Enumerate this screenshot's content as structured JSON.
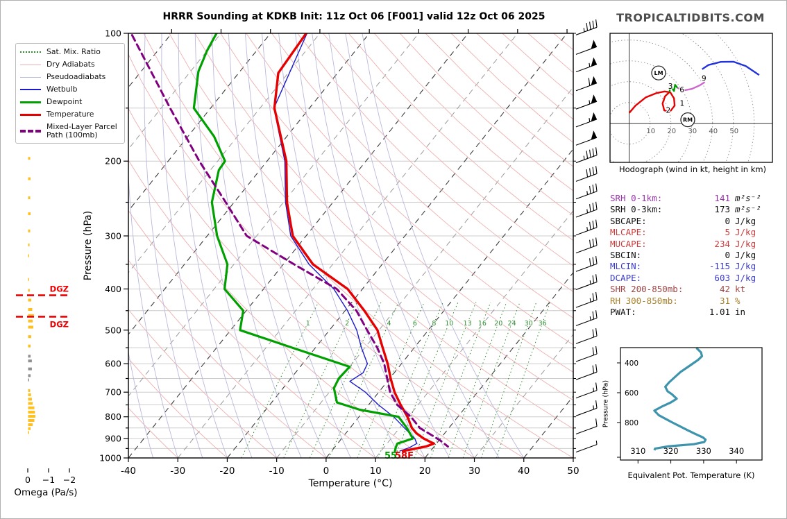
{
  "header": {
    "title": "HRRR Sounding at KDKB Init: 11z Oct 06 [F001] valid 12z Oct 06 2025",
    "site": "TROPICALTIDBITS.COM"
  },
  "skewt": {
    "xlabel": "Temperature (°C)",
    "ylabel": "Pressure (hPa)",
    "pressure_ticks": [
      100,
      200,
      300,
      400,
      500,
      600,
      700,
      800,
      900,
      1000
    ],
    "temp_ticks": [
      -40,
      -30,
      -20,
      -10,
      0,
      10,
      20,
      30,
      40,
      50
    ],
    "legend": [
      {
        "label": "Sat. Mix. Ratio"
      },
      {
        "label": "Dry Adiabats"
      },
      {
        "label": "Pseudoadiabats"
      },
      {
        "label": "Wetbulb"
      },
      {
        "label": "Dewpoint"
      },
      {
        "label": "Temperature"
      },
      {
        "label": "Mixed-Layer Parcel Path (100mb)"
      }
    ],
    "surface_dewpoint_label": "55",
    "surface_temp_label": "58F",
    "dgz_label": "DGZ"
  },
  "omega": {
    "xlabel": "Omega (Pa/s)",
    "ticks": [
      0,
      -1,
      -2
    ]
  },
  "stats": {
    "rows": [
      {
        "label": "SRH 0-1km:",
        "value": "141",
        "unit": "m²s⁻²",
        "color": "#9933aa",
        "unitColor": "#111111",
        "mathUnit": true
      },
      {
        "label": "SRH 0-3km:",
        "value": "173",
        "unit": "m²s⁻²",
        "color": "#111111",
        "unitColor": "#111111",
        "mathUnit": true
      },
      {
        "label": "SBCAPE:",
        "value": "0",
        "unit": "J/kg",
        "color": "#111111",
        "unitColor": "#111111",
        "mathUnit": false
      },
      {
        "label": "MLCAPE:",
        "value": "5",
        "unit": "J/kg",
        "color": "#cc3b3b",
        "unitColor": "#cc3b3b",
        "mathUnit": false
      },
      {
        "label": "MUCAPE:",
        "value": "234",
        "unit": "J/kg",
        "color": "#cc3b3b",
        "unitColor": "#cc3b3b",
        "mathUnit": false
      },
      {
        "label": "SBCIN:",
        "value": "0",
        "unit": "J/kg",
        "color": "#111111",
        "unitColor": "#111111",
        "mathUnit": false
      },
      {
        "label": "MLCIN:",
        "value": "-115",
        "unit": "J/kg",
        "color": "#3b3bcc",
        "unitColor": "#3b3bcc",
        "mathUnit": false
      },
      {
        "label": "DCAPE:",
        "value": "603",
        "unit": "J/kg",
        "color": "#3b3bcc",
        "unitColor": "#3b3bcc",
        "mathUnit": false
      },
      {
        "label": "SHR 200-850mb:",
        "value": "42",
        "unit": "kt",
        "color": "#a04545",
        "unitColor": "#a04545",
        "mathUnit": false
      },
      {
        "label": "RH 300-850mb:",
        "value": "31",
        "unit": "%",
        "color": "#a6802a",
        "unitColor": "#a6802a",
        "mathUnit": false
      },
      {
        "label": "PWAT:",
        "value": "1.01",
        "unit": "in",
        "color": "#111111",
        "unitColor": "#111111",
        "mathUnit": false
      }
    ]
  },
  "hodograph": {
    "caption": "Hodograph (wind in kt, height in km)",
    "ring_labels": [
      10,
      20,
      30,
      40,
      50
    ]
  },
  "theta_e": {
    "xlabel": "Equivalent Pot. Temperature (K)",
    "ylabel": "Pressure (hPa)",
    "x_ticks": [
      310,
      320,
      330,
      340
    ],
    "y_ticks": [
      400,
      600,
      800
    ]
  },
  "chart_data": [
    {
      "id": "skewt",
      "type": "line",
      "title": "HRRR Sounding at KDKB Init: 11z Oct 06 [F001] valid 12z Oct 06 2025",
      "xlabel": "Temperature (°C)",
      "ylabel": "Pressure (hPa)",
      "xlim": [
        -40,
        50
      ],
      "ylim": [
        1000,
        100
      ],
      "y_scale": "log",
      "skew": true,
      "mixing_ratio_labels": [
        1,
        2,
        3,
        4,
        6,
        8,
        10,
        13,
        16,
        20,
        24,
        30,
        36
      ],
      "dgz_pressures": [
        414,
        465
      ],
      "surface": {
        "temp_f": "58F",
        "dewpoint_f": "55"
      },
      "series": [
        {
          "name": "Temperature",
          "color": "#e60000",
          "width": 3.4,
          "dash": null,
          "points": [
            [
              99,
              -72.8
            ],
            [
              124,
              -72.0
            ],
            [
              150,
              -67.1
            ],
            [
              200,
              -56.1
            ],
            [
              250,
              -49.3
            ],
            [
              300,
              -42.7
            ],
            [
              350,
              -34.0
            ],
            [
              400,
              -23.0
            ],
            [
              450,
              -16.1
            ],
            [
              500,
              -10.3
            ],
            [
              550,
              -6.4
            ],
            [
              600,
              -2.8
            ],
            [
              650,
              0.2
            ],
            [
              700,
              3.2
            ],
            [
              750,
              6.5
            ],
            [
              800,
              9.8
            ],
            [
              850,
              12.5
            ],
            [
              875,
              14.3
            ],
            [
              900,
              16.6
            ],
            [
              915,
              18.3
            ],
            [
              925,
              19.5
            ],
            [
              940,
              18.3
            ],
            [
              955,
              15.8
            ],
            [
              963,
              14.4
            ]
          ]
        },
        {
          "name": "Dewpoint",
          "color": "#00a000",
          "width": 3.2,
          "dash": null,
          "points": [
            [
              99,
              -91.0
            ],
            [
              110,
              -90.0
            ],
            [
              123,
              -88.4
            ],
            [
              150,
              -83.4
            ],
            [
              175,
              -74.7
            ],
            [
              200,
              -68.5
            ],
            [
              210,
              -68.3
            ],
            [
              250,
              -64.5
            ],
            [
              300,
              -58.0
            ],
            [
              350,
              -51.3
            ],
            [
              400,
              -47.9
            ],
            [
              450,
              -40.6
            ],
            [
              500,
              -38.1
            ],
            [
              550,
              -24.7
            ],
            [
              610,
              -10.0
            ],
            [
              650,
              -10.3
            ],
            [
              685,
              -9.7
            ],
            [
              740,
              -6.8
            ],
            [
              770,
              -1.0
            ],
            [
              800,
              8.0
            ],
            [
              850,
              11.5
            ],
            [
              900,
              14.4
            ],
            [
              925,
              12.1
            ],
            [
              945,
              12.4
            ],
            [
              963,
              12.8
            ]
          ]
        },
        {
          "name": "Wetbulb",
          "color": "#1a1acc",
          "width": 1.4,
          "dash": null,
          "points": [
            [
              100,
              -72.6
            ],
            [
              150,
              -67.2
            ],
            [
              200,
              -56.4
            ],
            [
              250,
              -49.6
            ],
            [
              300,
              -43.1
            ],
            [
              350,
              -34.8
            ],
            [
              400,
              -25.8
            ],
            [
              450,
              -19.5
            ],
            [
              500,
              -14.5
            ],
            [
              550,
              -10.7
            ],
            [
              600,
              -6.9
            ],
            [
              630,
              -6.3
            ],
            [
              660,
              -7.6
            ],
            [
              700,
              -2.7
            ],
            [
              750,
              2.0
            ],
            [
              800,
              7.0
            ],
            [
              850,
              11.0
            ],
            [
              900,
              14.8
            ],
            [
              925,
              16.0
            ],
            [
              945,
              15.2
            ],
            [
              963,
              13.8
            ]
          ]
        },
        {
          "name": "Mixed-Layer Parcel Path (100mb)",
          "color": "#800080",
          "width": 3.0,
          "dash": "9,6",
          "points": [
            [
              101,
              -107.7
            ],
            [
              150,
              -88.2
            ],
            [
              200,
              -73.7
            ],
            [
              250,
              -61.7
            ],
            [
              300,
              -52.0
            ],
            [
              350,
              -37.8
            ],
            [
              400,
              -25.2
            ],
            [
              450,
              -17.7
            ],
            [
              500,
              -12.4
            ],
            [
              550,
              -7.5
            ],
            [
              600,
              -3.5
            ],
            [
              650,
              -0.5
            ],
            [
              700,
              2.3
            ],
            [
              750,
              5.8
            ],
            [
              800,
              10.5
            ],
            [
              850,
              14.1
            ],
            [
              885,
              17.8
            ],
            [
              910,
              20.3
            ],
            [
              940,
              22.8
            ]
          ]
        }
      ]
    },
    {
      "id": "omega",
      "type": "bar",
      "xlabel": "Omega (Pa/s)",
      "x_ticks": [
        0,
        -1,
        -2
      ],
      "units": "Pa/s",
      "bars_yellow": [
        [
          174,
          -0.1
        ],
        [
          197,
          -0.1
        ],
        [
          220,
          -0.12
        ],
        [
          244,
          -0.1
        ],
        [
          266,
          -0.12
        ],
        [
          292,
          -0.1
        ],
        [
          315,
          -0.07
        ],
        [
          334,
          -0.05
        ],
        [
          380,
          -0.05
        ],
        [
          403,
          -0.08
        ],
        [
          425,
          -0.15
        ],
        [
          447,
          -0.2
        ],
        [
          462,
          -0.28
        ],
        [
          476,
          -0.22
        ],
        [
          492,
          -0.25
        ],
        [
          518,
          -0.15
        ],
        [
          545,
          -0.12
        ],
        [
          694,
          -0.1
        ],
        [
          710,
          -0.14
        ],
        [
          727,
          -0.18
        ],
        [
          744,
          -0.22
        ],
        [
          762,
          -0.3
        ],
        [
          780,
          -0.33
        ],
        [
          798,
          -0.35
        ],
        [
          816,
          -0.3
        ],
        [
          835,
          -0.22
        ],
        [
          853,
          -0.12
        ],
        [
          871,
          -0.05
        ]
      ],
      "bars_gray": [
        [
          576,
          -0.12
        ],
        [
          591,
          -0.18
        ],
        [
          617,
          -0.18
        ],
        [
          640,
          -0.12
        ],
        [
          655,
          -0.05
        ]
      ]
    },
    {
      "id": "wind_barbs",
      "type": "barbs",
      "units": "kt",
      "points": [
        [
          99,
          45
        ],
        [
          110,
          50
        ],
        [
          121,
          55
        ],
        [
          134,
          60
        ],
        [
          148,
          55
        ],
        [
          163,
          55
        ],
        [
          180,
          50
        ],
        [
          198,
          45
        ],
        [
          219,
          40
        ],
        [
          241,
          38
        ],
        [
          266,
          35
        ],
        [
          293,
          35
        ],
        [
          323,
          33
        ],
        [
          357,
          30
        ],
        [
          394,
          28
        ],
        [
          434,
          25
        ],
        [
          479,
          25
        ],
        [
          528,
          22
        ],
        [
          582,
          20
        ],
        [
          642,
          20
        ],
        [
          709,
          18
        ],
        [
          781,
          15
        ],
        [
          862,
          12
        ],
        [
          951,
          8
        ]
      ]
    },
    {
      "id": "hodograph",
      "type": "line",
      "title": "Hodograph (wind in kt, height in km)",
      "units": "kt",
      "ring_interval": 10,
      "rings": [
        10,
        20,
        30,
        40,
        50
      ],
      "segments": [
        {
          "name": "0-3km",
          "color": "#e60000",
          "points": [
            [
              0,
              5
            ],
            [
              3,
              8.5
            ],
            [
              8,
              12.5
            ],
            [
              13,
              14.5
            ],
            [
              17,
              15.3
            ],
            [
              19.7,
              14.9
            ],
            [
              21.5,
              12
            ],
            [
              21.8,
              8.5
            ],
            [
              19.5,
              5.5
            ],
            [
              16.8,
              6.2
            ],
            [
              16,
              9.5
            ],
            [
              17.2,
              13
            ],
            [
              19.3,
              15
            ]
          ]
        },
        {
          "name": "3-6km",
          "color": "#009900",
          "points": [
            [
              19.3,
              15
            ],
            [
              19.8,
              17.9
            ],
            [
              21.5,
              15.5
            ],
            [
              22,
              18.5
            ],
            [
              23.2,
              17
            ]
          ]
        },
        {
          "name": "6-9km",
          "color": "#cc66cc",
          "points": [
            [
              23.2,
              17
            ],
            [
              26,
              15.8
            ],
            [
              30,
              16.5
            ],
            [
              34,
              18.3
            ],
            [
              36.3,
              19.8
            ]
          ]
        },
        {
          "name": "9km+",
          "color": "#2233dd",
          "points": [
            [
              35,
              26
            ],
            [
              38,
              28
            ],
            [
              44,
              29.5
            ],
            [
              50,
              29.6
            ],
            [
              56,
              27.5
            ],
            [
              62.4,
              23.2
            ]
          ]
        }
      ],
      "height_labels": [
        {
          "t": "1",
          "u": 25.4,
          "v": 9.6
        },
        {
          "t": "2",
          "u": 18.7,
          "v": 6.3
        },
        {
          "t": "3",
          "u": 19.8,
          "v": 17.8
        },
        {
          "t": "6",
          "u": 25.3,
          "v": 16.1
        },
        {
          "t": "9",
          "u": 35.9,
          "v": 21.5
        }
      ],
      "storm_markers": [
        {
          "t": "LM",
          "u": 14.1,
          "v": 24.2
        },
        {
          "t": "RM",
          "u": 28.1,
          "v": 1.7
        }
      ]
    },
    {
      "id": "theta_e",
      "type": "line",
      "xlabel": "Equivalent Pot. Temperature (K)",
      "ylabel": "Pressure (hPa)",
      "x_ticks": [
        310,
        320,
        330,
        340
      ],
      "y_ticks": [
        400,
        600,
        800
      ],
      "color": "#3e93ad",
      "points": [
        [
          300,
          327.8
        ],
        [
          330,
          329.2
        ],
        [
          355,
          329.5
        ],
        [
          380,
          328.3
        ],
        [
          400,
          327.0
        ],
        [
          430,
          325.0
        ],
        [
          460,
          323.0
        ],
        [
          500,
          321.0
        ],
        [
          530,
          319.5
        ],
        [
          560,
          318.3
        ],
        [
          590,
          319.0
        ],
        [
          610,
          320.3
        ],
        [
          640,
          321.8
        ],
        [
          665,
          320.0
        ],
        [
          690,
          317.5
        ],
        [
          720,
          315.0
        ],
        [
          750,
          316.3
        ],
        [
          780,
          318.8
        ],
        [
          800,
          320.5
        ],
        [
          825,
          322.8
        ],
        [
          850,
          325.0
        ],
        [
          875,
          327.3
        ],
        [
          900,
          329.8
        ],
        [
          915,
          330.6
        ],
        [
          930,
          330.2
        ],
        [
          945,
          327.0
        ],
        [
          960,
          319.0
        ],
        [
          975,
          315.2
        ],
        [
          985,
          315.0
        ]
      ]
    }
  ]
}
